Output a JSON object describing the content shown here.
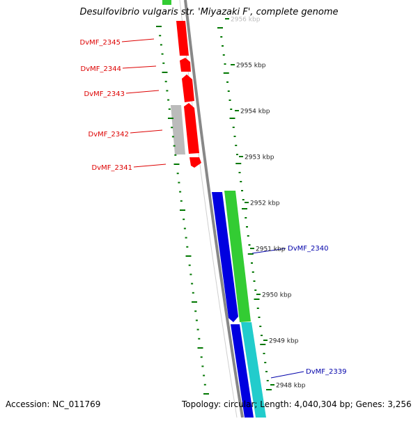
{
  "title": "Desulfovibrio vulgaris str. 'Miyazaki F', complete genome",
  "accession": "Accession: NC_011769",
  "summary": "Topology: circular; Length: 4,040,304 bp; Genes: 3,256",
  "colors": {
    "forward_gene": "#ff0000",
    "reverse_gene": "#0000e0",
    "backbone": "#888888",
    "tick": "#007700",
    "cds_green": "#33cc33",
    "cds_cyan": "#22cccc",
    "pseudo_gray": "#bbbbbb"
  },
  "scale": {
    "unit": "kbp",
    "ticks": [
      {
        "pos": 2956,
        "label": "2956 kbp"
      },
      {
        "pos": 2955,
        "label": "2955 kbp"
      },
      {
        "pos": 2954,
        "label": "2954 kbp"
      },
      {
        "pos": 2953,
        "label": "2953 kbp"
      },
      {
        "pos": 2952,
        "label": "2952 kbp"
      },
      {
        "pos": 2951,
        "label": "2951 kbp"
      },
      {
        "pos": 2950,
        "label": "2950 kbp"
      },
      {
        "pos": 2949,
        "label": "2949 kbp"
      },
      {
        "pos": 2948,
        "label": "2948 kbp"
      }
    ]
  },
  "genes": [
    {
      "name": "DvMF_2345",
      "strand": "forward"
    },
    {
      "name": "DvMF_2344",
      "strand": "forward"
    },
    {
      "name": "DvMF_2343",
      "strand": "forward"
    },
    {
      "name": "DvMF_2342",
      "strand": "forward"
    },
    {
      "name": "DvMF_2341",
      "strand": "forward"
    },
    {
      "name": "DvMF_2340",
      "strand": "reverse"
    },
    {
      "name": "DvMF_2339",
      "strand": "reverse"
    }
  ]
}
